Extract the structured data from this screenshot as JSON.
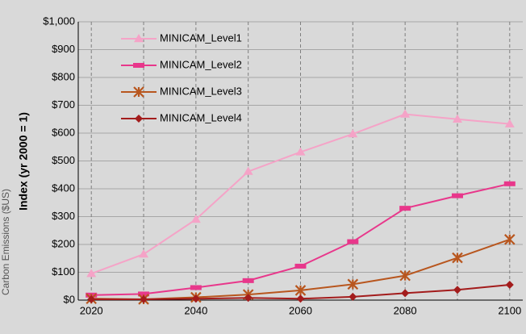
{
  "chart_data": {
    "type": "line",
    "y_label": "Index (yr 2000 = 1)",
    "side_label": "Carbon Emissions ($US)",
    "x": [
      2020,
      2030,
      2040,
      2050,
      2060,
      2070,
      2080,
      2090,
      2100
    ],
    "xlim": [
      2017.5,
      2102.5
    ],
    "xticks": [
      2020,
      2040,
      2060,
      2080,
      2100
    ],
    "ylim": [
      0,
      1000
    ],
    "yticks": [
      {
        "value": 0,
        "label": "$0"
      },
      {
        "value": 100,
        "label": "$100"
      },
      {
        "value": 200,
        "label": "$200"
      },
      {
        "value": 300,
        "label": "$300"
      },
      {
        "value": 400,
        "label": "$400"
      },
      {
        "value": 500,
        "label": "$500"
      },
      {
        "value": 600,
        "label": "$600"
      },
      {
        "value": 700,
        "label": "$700"
      },
      {
        "value": 800,
        "label": "$800"
      },
      {
        "value": 900,
        "label": "$900"
      },
      {
        "value": 1000,
        "label": "$1,000"
      }
    ],
    "grid": true,
    "legend": "upper left",
    "series": [
      {
        "name": "MINICAM_Level1",
        "color": "#f5a3c7",
        "marker": "triangle",
        "values": [
          95,
          165,
          290,
          462,
          532,
          597,
          668,
          650,
          633
        ]
      },
      {
        "name": "MINICAM_Level2",
        "color": "#e8378b",
        "marker": "dash",
        "values": [
          18,
          22,
          45,
          70,
          122,
          210,
          330,
          375,
          418
        ]
      },
      {
        "name": "MINICAM_Level3",
        "color": "#b8561e",
        "marker": "star",
        "values": [
          5,
          3,
          10,
          20,
          35,
          57,
          88,
          152,
          218
        ]
      },
      {
        "name": "MINICAM_Level4",
        "color": "#a31c1c",
        "marker": "diamond",
        "values": [
          3,
          3,
          5,
          8,
          5,
          12,
          25,
          37,
          55
        ]
      }
    ]
  }
}
